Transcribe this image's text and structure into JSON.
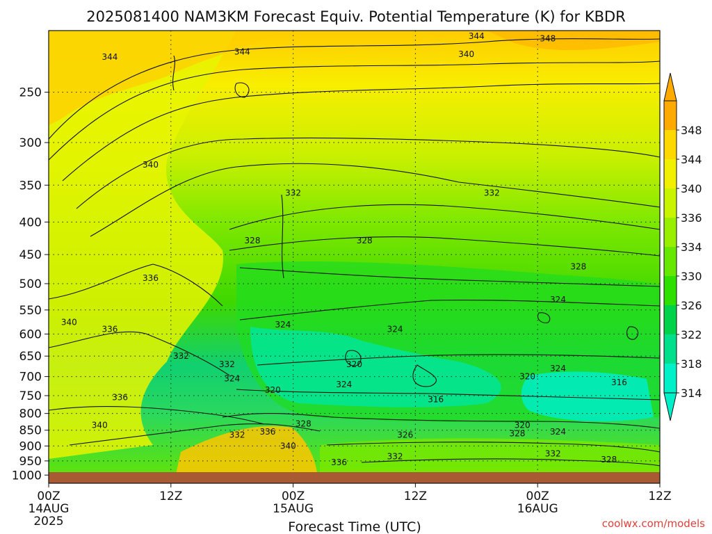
{
  "chart_data": {
    "type": "heatmap",
    "title": "2025081400 NAM3KM Forecast Equiv. Potential Temperature (K) for KBDR",
    "xlabel": "Forecast Time (UTC)",
    "ylabel": "",
    "x_ticks": [
      {
        "label": "00Z",
        "sub": "14AUG",
        "sub2": "2025",
        "hour": 0
      },
      {
        "label": "12Z",
        "sub": "",
        "sub2": "",
        "hour": 12
      },
      {
        "label": "00Z",
        "sub": "15AUG",
        "sub2": "",
        "hour": 24
      },
      {
        "label": "12Z",
        "sub": "",
        "sub2": "",
        "hour": 36
      },
      {
        "label": "00Z",
        "sub": "16AUG",
        "sub2": "",
        "hour": 48
      },
      {
        "label": "12Z",
        "sub": "",
        "sub2": "",
        "hour": 60
      }
    ],
    "xlim": [
      0,
      60
    ],
    "y_ticks": [
      250,
      300,
      350,
      400,
      450,
      500,
      550,
      600,
      650,
      700,
      750,
      800,
      850,
      900,
      950,
      1000
    ],
    "ylim": [
      200,
      1030
    ],
    "y_scale": "log-pressure (hPa, inverted)",
    "grid": "dotted",
    "colorbar": {
      "levels": [
        314,
        318,
        322,
        326,
        330,
        334,
        336,
        340,
        344,
        348
      ],
      "colors": [
        "#00f0c8",
        "#00e08c",
        "#00d24a",
        "#2ee000",
        "#66e800",
        "#98f000",
        "#c8f400",
        "#f0f000",
        "#ffd800",
        "#ffaa00"
      ],
      "placement": "right"
    },
    "contour_labels": [
      {
        "text": "344",
        "hour": 6,
        "pressure": 220
      },
      {
        "text": "344",
        "hour": 19,
        "pressure": 216
      },
      {
        "text": "344",
        "hour": 42,
        "pressure": 204
      },
      {
        "text": "348",
        "hour": 49,
        "pressure": 206
      },
      {
        "text": "340",
        "hour": 41,
        "pressure": 218
      },
      {
        "text": "340",
        "hour": 10,
        "pressure": 325
      },
      {
        "text": "332",
        "hour": 24,
        "pressure": 360
      },
      {
        "text": "332",
        "hour": 43.5,
        "pressure": 360
      },
      {
        "text": "328",
        "hour": 20,
        "pressure": 428
      },
      {
        "text": "328",
        "hour": 31,
        "pressure": 428
      },
      {
        "text": "328",
        "hour": 52,
        "pressure": 470
      },
      {
        "text": "336",
        "hour": 10,
        "pressure": 490
      },
      {
        "text": "324",
        "hour": 50,
        "pressure": 530
      },
      {
        "text": "340",
        "hour": 2,
        "pressure": 575
      },
      {
        "text": "336",
        "hour": 6,
        "pressure": 590
      },
      {
        "text": "324",
        "hour": 23,
        "pressure": 580
      },
      {
        "text": "324",
        "hour": 34,
        "pressure": 590
      },
      {
        "text": "332",
        "hour": 13,
        "pressure": 650
      },
      {
        "text": "332",
        "hour": 17.5,
        "pressure": 670
      },
      {
        "text": "320",
        "hour": 30,
        "pressure": 670
      },
      {
        "text": "324",
        "hour": 50,
        "pressure": 680
      },
      {
        "text": "324",
        "hour": 18,
        "pressure": 705
      },
      {
        "text": "324",
        "hour": 29,
        "pressure": 720
      },
      {
        "text": "320",
        "hour": 22,
        "pressure": 735
      },
      {
        "text": "320",
        "hour": 47,
        "pressure": 700
      },
      {
        "text": "316",
        "hour": 56,
        "pressure": 715
      },
      {
        "text": "316",
        "hour": 38,
        "pressure": 760
      },
      {
        "text": "336",
        "hour": 7,
        "pressure": 755
      },
      {
        "text": "340",
        "hour": 5,
        "pressure": 835
      },
      {
        "text": "320",
        "hour": 46.5,
        "pressure": 835
      },
      {
        "text": "324",
        "hour": 50,
        "pressure": 855
      },
      {
        "text": "328",
        "hour": 25,
        "pressure": 830
      },
      {
        "text": "328",
        "hour": 46,
        "pressure": 860
      },
      {
        "text": "336",
        "hour": 21.5,
        "pressure": 855
      },
      {
        "text": "332",
        "hour": 18.5,
        "pressure": 865
      },
      {
        "text": "326",
        "hour": 35,
        "pressure": 865
      },
      {
        "text": "340",
        "hour": 23.5,
        "pressure": 900
      },
      {
        "text": "332",
        "hour": 34,
        "pressure": 935
      },
      {
        "text": "332",
        "hour": 49.5,
        "pressure": 925
      },
      {
        "text": "328",
        "hour": 55,
        "pressure": 945
      },
      {
        "text": "336",
        "hour": 28.5,
        "pressure": 955
      }
    ]
  },
  "credit": "coolwx.com/models"
}
